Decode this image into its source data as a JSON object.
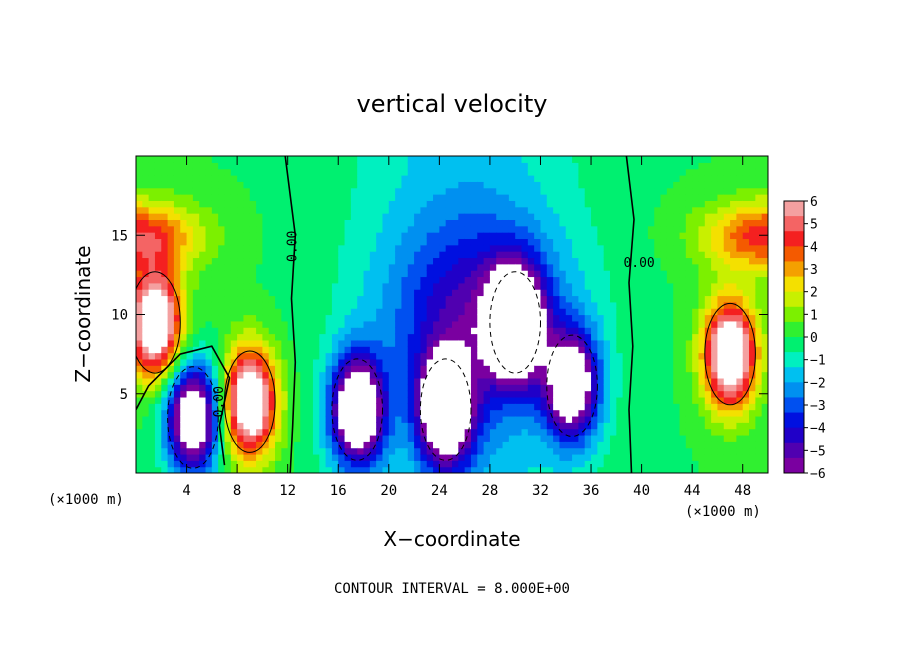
{
  "chart_data": {
    "type": "heatmap",
    "title": "vertical velocity",
    "xlabel": "X−coordinate",
    "ylabel": "Z−coordinate",
    "x_unit": "(×1000 m)",
    "y_unit": "(×1000 m)",
    "xlim": [
      0,
      50
    ],
    "ylim": [
      0,
      20
    ],
    "x_ticks": [
      4,
      8,
      12,
      16,
      20,
      24,
      28,
      32,
      36,
      40,
      44,
      48
    ],
    "y_ticks": [
      5,
      10,
      15
    ],
    "colorbar": {
      "min": -6,
      "max": 6,
      "ticks": [
        "6",
        "5",
        "4",
        "3",
        "2",
        "1",
        "0",
        "−1",
        "−2",
        "−3",
        "−4",
        "−5",
        "−6"
      ],
      "colors": [
        "#f4a0a0",
        "#f46464",
        "#f42020",
        "#f45a00",
        "#f4a000",
        "#f4e000",
        "#c8f000",
        "#7cf000",
        "#30f030",
        "#00f070",
        "#00f0c0",
        "#00c0f0",
        "#0090f0",
        "#0050f0",
        "#0010e0",
        "#2000c8",
        "#5000b0",
        "#7a00a0"
      ]
    },
    "contour_interval_label": "CONTOUR INTERVAL = 8.000E+00",
    "contour_labels": [
      "0.00",
      "0.00",
      "0.00"
    ],
    "features": [
      {
        "x": 1.5,
        "z": 9.5,
        "w": 8.5
      },
      {
        "x": 4.5,
        "z": 3.5,
        "w": -8.5
      },
      {
        "x": 9.0,
        "z": 4.5,
        "w": 8.5
      },
      {
        "x": 17.5,
        "z": 4.0,
        "w": -8.5
      },
      {
        "x": 24.5,
        "z": 4.0,
        "w": -8.5
      },
      {
        "x": 30.0,
        "z": 9.5,
        "w": -9.0
      },
      {
        "x": 34.5,
        "z": 5.5,
        "w": -7.5
      },
      {
        "x": 47.0,
        "z": 7.5,
        "w": 8.5
      }
    ]
  }
}
